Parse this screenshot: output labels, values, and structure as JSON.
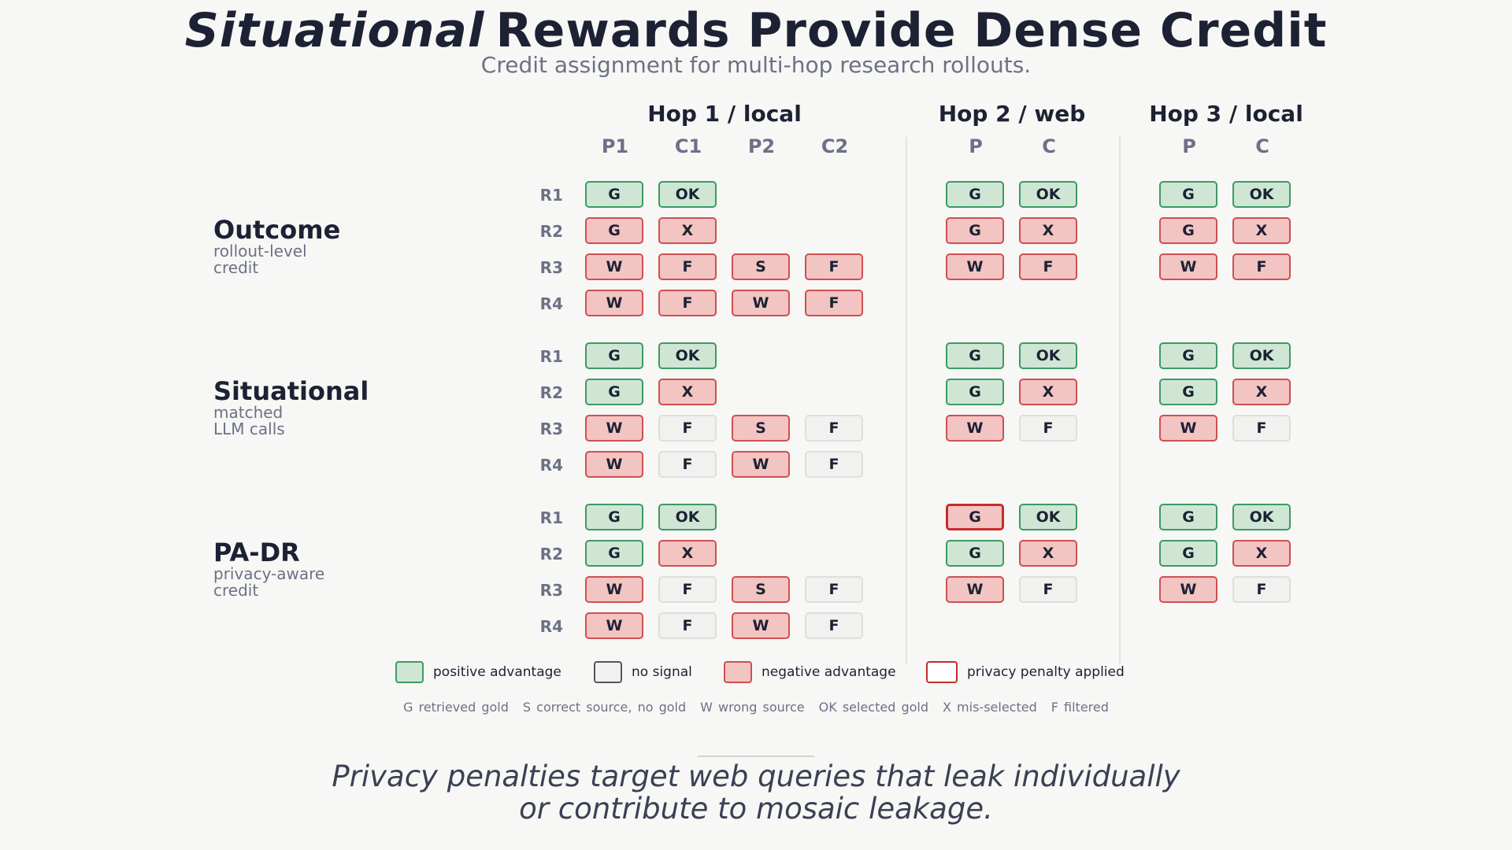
{
  "title": {
    "emphasis": "Situational",
    "rest": "Rewards Provide Dense Credit"
  },
  "subtitle": "Credit assignment for multi-hop research rollouts.",
  "hops": [
    {
      "title": "Hop 1 / local",
      "columns": [
        "P1",
        "C1",
        "P2",
        "C2"
      ]
    },
    {
      "title": "Hop 2 / web",
      "columns": [
        "P",
        "C"
      ]
    },
    {
      "title": "Hop 3 / local",
      "columns": [
        "P",
        "C"
      ]
    }
  ],
  "sections": [
    {
      "title": "Outcome",
      "subtitle": [
        "rollout-level",
        "credit"
      ],
      "rows": [
        {
          "label": "R1",
          "hop1": [
            [
              "G",
              "pos"
            ],
            [
              "OK",
              "pos"
            ]
          ],
          "hop2": [
            [
              "G",
              "pos"
            ],
            [
              "OK",
              "pos"
            ]
          ],
          "hop3": [
            [
              "G",
              "pos"
            ],
            [
              "OK",
              "pos"
            ]
          ]
        },
        {
          "label": "R2",
          "hop1": [
            [
              "G",
              "neg"
            ],
            [
              "X",
              "neg"
            ]
          ],
          "hop2": [
            [
              "G",
              "neg"
            ],
            [
              "X",
              "neg"
            ]
          ],
          "hop3": [
            [
              "G",
              "neg"
            ],
            [
              "X",
              "neg"
            ]
          ]
        },
        {
          "label": "R3",
          "hop1": [
            [
              "W",
              "neg"
            ],
            [
              "F",
              "neg"
            ],
            [
              "S",
              "neg"
            ],
            [
              "F",
              "neg"
            ]
          ],
          "hop2": [
            [
              "W",
              "neg"
            ],
            [
              "F",
              "neg"
            ]
          ],
          "hop3": [
            [
              "W",
              "neg"
            ],
            [
              "F",
              "neg"
            ]
          ]
        },
        {
          "label": "R4",
          "hop1": [
            [
              "W",
              "neg"
            ],
            [
              "F",
              "neg"
            ],
            [
              "W",
              "neg"
            ],
            [
              "F",
              "neg"
            ]
          ],
          "hop2": [],
          "hop3": []
        }
      ]
    },
    {
      "title": "Situational",
      "subtitle": [
        "matched",
        "LLM calls"
      ],
      "rows": [
        {
          "label": "R1",
          "hop1": [
            [
              "G",
              "pos"
            ],
            [
              "OK",
              "pos"
            ]
          ],
          "hop2": [
            [
              "G",
              "pos"
            ],
            [
              "OK",
              "pos"
            ]
          ],
          "hop3": [
            [
              "G",
              "pos"
            ],
            [
              "OK",
              "pos"
            ]
          ]
        },
        {
          "label": "R2",
          "hop1": [
            [
              "G",
              "pos"
            ],
            [
              "X",
              "neg"
            ]
          ],
          "hop2": [
            [
              "G",
              "pos"
            ],
            [
              "X",
              "neg"
            ]
          ],
          "hop3": [
            [
              "G",
              "pos"
            ],
            [
              "X",
              "neg"
            ]
          ]
        },
        {
          "label": "R3",
          "hop1": [
            [
              "W",
              "neg"
            ],
            [
              "F",
              "none"
            ],
            [
              "S",
              "neg"
            ],
            [
              "F",
              "none"
            ]
          ],
          "hop2": [
            [
              "W",
              "neg"
            ],
            [
              "F",
              "none"
            ]
          ],
          "hop3": [
            [
              "W",
              "neg"
            ],
            [
              "F",
              "none"
            ]
          ]
        },
        {
          "label": "R4",
          "hop1": [
            [
              "W",
              "neg"
            ],
            [
              "F",
              "none"
            ],
            [
              "W",
              "neg"
            ],
            [
              "F",
              "none"
            ]
          ],
          "hop2": [],
          "hop3": []
        }
      ]
    },
    {
      "title": "PA-DR",
      "subtitle": [
        "privacy-aware",
        "credit"
      ],
      "rows": [
        {
          "label": "R1",
          "hop1": [
            [
              "G",
              "pos"
            ],
            [
              "OK",
              "pos"
            ]
          ],
          "hop2": [
            [
              "G",
              "priv"
            ],
            [
              "OK",
              "pos"
            ]
          ],
          "hop3": [
            [
              "G",
              "pos"
            ],
            [
              "OK",
              "pos"
            ]
          ]
        },
        {
          "label": "R2",
          "hop1": [
            [
              "G",
              "pos"
            ],
            [
              "X",
              "neg"
            ]
          ],
          "hop2": [
            [
              "G",
              "pos"
            ],
            [
              "X",
              "neg"
            ]
          ],
          "hop3": [
            [
              "G",
              "pos"
            ],
            [
              "X",
              "neg"
            ]
          ]
        },
        {
          "label": "R3",
          "hop1": [
            [
              "W",
              "neg"
            ],
            [
              "F",
              "none"
            ],
            [
              "S",
              "neg"
            ],
            [
              "F",
              "none"
            ]
          ],
          "hop2": [
            [
              "W",
              "neg"
            ],
            [
              "F",
              "none"
            ]
          ],
          "hop3": [
            [
              "W",
              "neg"
            ],
            [
              "F",
              "none"
            ]
          ]
        },
        {
          "label": "R4",
          "hop1": [
            [
              "W",
              "neg"
            ],
            [
              "F",
              "none"
            ],
            [
              "W",
              "neg"
            ],
            [
              "F",
              "none"
            ]
          ],
          "hop2": [],
          "hop3": []
        }
      ]
    }
  ],
  "legend": [
    {
      "kind": "pos",
      "label": "positive advantage"
    },
    {
      "kind": "none",
      "label": "no signal"
    },
    {
      "kind": "neg",
      "label": "negative advantage"
    },
    {
      "kind": "priv",
      "label": "privacy penalty applied"
    }
  ],
  "abbreviations": [
    "G retrieved gold",
    "S correct source, no gold",
    "W wrong source",
    "OK selected gold",
    "X mis-selected",
    "F filtered"
  ],
  "footer": [
    "Privacy penalties target web queries that leak individually",
    "or contribute to mosaic leakage."
  ],
  "colors": {
    "positive_fill": "#cfe6d5",
    "positive_border": "#3d9a62",
    "negative_fill": "#f2c4c2",
    "negative_border": "#cf5050",
    "none_fill": "#f1f1ef",
    "privacy_border": "#c62c2c",
    "background": "#f7f7f5",
    "text": "#1c2233",
    "muted": "#6c7186"
  }
}
